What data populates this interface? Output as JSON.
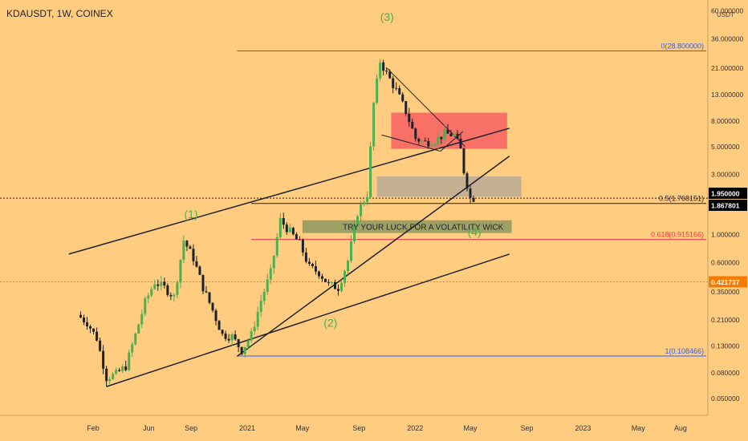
{
  "symbol_header": "KDAUSDT, 1W, COINEX",
  "price_axis_unit": "USDT",
  "colors": {
    "background": "#ffcc80",
    "up": "#4caf50",
    "down": "#1e222d",
    "fib_top": "#2962ff",
    "fib_618": "#f23645",
    "fib_half": "#1e222d",
    "red_zone": "#f7525f",
    "gray_zone": "#9e9e9e",
    "green_zone": "#4e7d4a",
    "wave_label": "#4caf50",
    "price_tag": "#000000",
    "level_tag": "#f57c00"
  },
  "chart_data": {
    "type": "candlestick",
    "title": "KDAUSDT, 1W, COINEX",
    "y_scale": "log",
    "ylim": [
      0.04,
      70
    ],
    "y_ticks": [
      "60.000000",
      "36.000000",
      "21.000000",
      "13.000000",
      "8.000000",
      "5.000000",
      "3.000000",
      "1.950000",
      "1.867801",
      "1.000000",
      "0.600000",
      "0.421737",
      "0.350000",
      "0.210000",
      "0.130000",
      "0.080000",
      "0.050000"
    ],
    "x_ticks": [
      "Feb",
      "Jun",
      "Sep",
      "2021",
      "May",
      "Sep",
      "2022",
      "May",
      "Sep",
      "2023",
      "May",
      "Aug"
    ],
    "x_tick_dates": [
      "2020-02-01",
      "2020-06-01",
      "2020-09-01",
      "2021-01-01",
      "2021-05-01",
      "2021-09-01",
      "2022-01-01",
      "2022-05-01",
      "2022-09-01",
      "2023-01-01",
      "2023-05-01",
      "2023-08-01"
    ],
    "price_tags": [
      {
        "value": 1.95,
        "label": "1.950000",
        "color": "#000000"
      },
      {
        "value": 1.867801,
        "label": "1.867801",
        "color": "#000000"
      },
      {
        "value": 0.421737,
        "label": "0.421737",
        "color": "#f57c00"
      }
    ],
    "fib_levels": [
      {
        "label": "0(28.800000)",
        "value": 28.8,
        "color": "#2962ff"
      },
      {
        "label": "0.5(1.768151)",
        "value": 1.768151,
        "color": "#1e222d"
      },
      {
        "label": "0.618(0.915166)",
        "value": 0.915166,
        "color": "#f23645"
      },
      {
        "label": "1(0.108466)",
        "value": 0.108466,
        "color": "#2962ff"
      }
    ],
    "wave_labels": [
      {
        "text": "(1)",
        "date": "2020-09-01",
        "price": 1.35
      },
      {
        "text": "(2)",
        "date": "2021-07-01",
        "price": 0.185
      },
      {
        "text": "(3)",
        "date": "2021-11-01",
        "price": 50
      },
      {
        "text": "(4)",
        "date": "2022-05-10",
        "price": 0.98
      }
    ],
    "annotation": "TRY YOUR LUCK FOR A VOLATILITY WICK",
    "zones": [
      {
        "kind": "red",
        "start": "2021-11-10",
        "end": "2022-07-20",
        "high": 9.3,
        "low": 4.8
      },
      {
        "kind": "gray",
        "start": "2021-10-10",
        "end": "2022-08-20",
        "high": 2.9,
        "low": 2.0
      },
      {
        "kind": "green",
        "start": "2021-05-01",
        "end": "2022-07-30",
        "high": 1.3,
        "low": 1.03
      }
    ],
    "trendlines": [
      {
        "from": {
          "date": "2019-12-10",
          "price": 0.7
        },
        "to": {
          "date": "2022-07-25",
          "price": 7.0
        }
      },
      {
        "from": {
          "date": "2020-03-01",
          "price": 0.062
        },
        "to": {
          "date": "2022-07-25",
          "price": 0.7
        }
      },
      {
        "from": {
          "date": "2020-12-10",
          "price": 0.108
        },
        "to": {
          "date": "2022-07-25",
          "price": 4.2
        }
      },
      {
        "from": {
          "date": "2021-11-01",
          "price": 21.0
        },
        "to": {
          "date": "2022-04-20",
          "price": 5.0
        }
      },
      {
        "from": {
          "date": "2021-10-20",
          "price": 6.2
        },
        "to": {
          "date": "2022-02-25",
          "price": 4.6
        }
      },
      {
        "from": {
          "date": "2022-02-25",
          "price": 4.6
        },
        "to": {
          "date": "2022-04-15",
          "price": 6.6
        }
      }
    ],
    "series_points": [
      {
        "date": "2020-01-05",
        "price": 0.23
      },
      {
        "date": "2020-01-26",
        "price": 0.2
      },
      {
        "date": "2020-02-16",
        "price": 0.15
      },
      {
        "date": "2020-03-08",
        "price": 0.073
      },
      {
        "date": "2020-03-29",
        "price": 0.078
      },
      {
        "date": "2020-04-19",
        "price": 0.09
      },
      {
        "date": "2020-05-10",
        "price": 0.16
      },
      {
        "date": "2020-05-31",
        "price": 0.29
      },
      {
        "date": "2020-06-21",
        "price": 0.42
      },
      {
        "date": "2020-07-12",
        "price": 0.38
      },
      {
        "date": "2020-08-02",
        "price": 0.32
      },
      {
        "date": "2020-08-23",
        "price": 0.9
      },
      {
        "date": "2020-09-13",
        "price": 0.65
      },
      {
        "date": "2020-10-04",
        "price": 0.38
      },
      {
        "date": "2020-10-25",
        "price": 0.25
      },
      {
        "date": "2020-11-15",
        "price": 0.16
      },
      {
        "date": "2020-12-06",
        "price": 0.155
      },
      {
        "date": "2020-12-27",
        "price": 0.12
      },
      {
        "date": "2021-01-17",
        "price": 0.16
      },
      {
        "date": "2021-02-07",
        "price": 0.3
      },
      {
        "date": "2021-02-28",
        "price": 0.5
      },
      {
        "date": "2021-03-21",
        "price": 1.3
      },
      {
        "date": "2021-04-11",
        "price": 1.05
      },
      {
        "date": "2021-05-02",
        "price": 0.85
      },
      {
        "date": "2021-05-23",
        "price": 0.55
      },
      {
        "date": "2021-06-13",
        "price": 0.5
      },
      {
        "date": "2021-07-04",
        "price": 0.4
      },
      {
        "date": "2021-07-25",
        "price": 0.38
      },
      {
        "date": "2021-08-15",
        "price": 0.62
      },
      {
        "date": "2021-09-05",
        "price": 1.5
      },
      {
        "date": "2021-09-26",
        "price": 2.1
      },
      {
        "date": "2021-10-10",
        "price": 11
      },
      {
        "date": "2021-10-24",
        "price": 24
      },
      {
        "date": "2021-11-07",
        "price": 19
      },
      {
        "date": "2021-11-28",
        "price": 14
      },
      {
        "date": "2021-12-19",
        "price": 9.5
      },
      {
        "date": "2022-01-09",
        "price": 5.8
      },
      {
        "date": "2022-01-30",
        "price": 5.4
      },
      {
        "date": "2022-02-20",
        "price": 5.6
      },
      {
        "date": "2022-03-13",
        "price": 6.3
      },
      {
        "date": "2022-04-03",
        "price": 6.2
      },
      {
        "date": "2022-04-17",
        "price": 4.7
      },
      {
        "date": "2022-04-24",
        "price": 3.2
      },
      {
        "date": "2022-05-08",
        "price": 1.95
      }
    ]
  }
}
